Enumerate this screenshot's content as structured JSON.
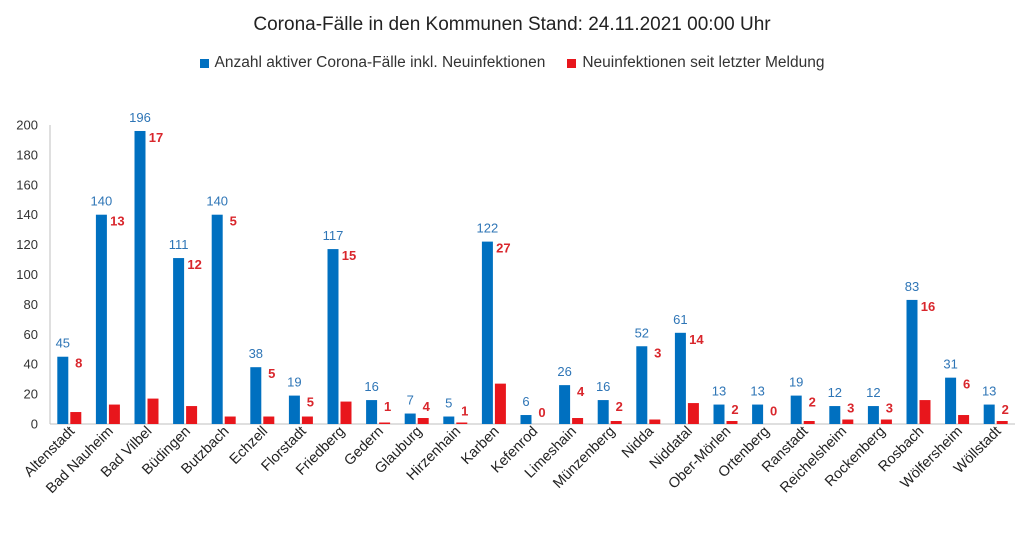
{
  "chart_data": {
    "type": "bar",
    "title": "Corona-Fälle in den Kommunen Stand: 24.11.2021 00:00 Uhr",
    "ylim": [
      0,
      200
    ],
    "yticks": [
      0,
      20,
      40,
      60,
      80,
      100,
      120,
      140,
      160,
      180,
      200
    ],
    "grid": false,
    "legend_position": "top",
    "categories": [
      "Altenstadt",
      "Bad Nauheim",
      "Bad Vilbel",
      "Büdingen",
      "Butzbach",
      "Echzell",
      "Florstadt",
      "Friedberg",
      "Gedern",
      "Glauburg",
      "Hirzenhain",
      "Karben",
      "Kefenrod",
      "Limeshain",
      "Münzenberg",
      "Nidda",
      "Niddatal",
      "Ober-Mörlen",
      "Ortenberg",
      "Ranstadt",
      "Reichelsheim",
      "Rockenberg",
      "Rosbach",
      "Wölfersheim",
      "Wöllstadt"
    ],
    "series": [
      {
        "name": "Anzahl aktiver Corona-Fälle inkl. Neuinfektionen",
        "color": "#0070c0",
        "values": [
          45,
          140,
          196,
          111,
          140,
          38,
          19,
          117,
          16,
          7,
          5,
          122,
          6,
          26,
          16,
          52,
          61,
          13,
          13,
          19,
          12,
          12,
          83,
          31,
          13
        ]
      },
      {
        "name": "Neuinfektionen seit letzter Meldung",
        "color": "#e8161c",
        "values": [
          8,
          13,
          17,
          12,
          5,
          5,
          5,
          15,
          1,
          4,
          1,
          27,
          0,
          4,
          2,
          3,
          14,
          2,
          0,
          2,
          3,
          3,
          16,
          6,
          2
        ]
      }
    ]
  }
}
